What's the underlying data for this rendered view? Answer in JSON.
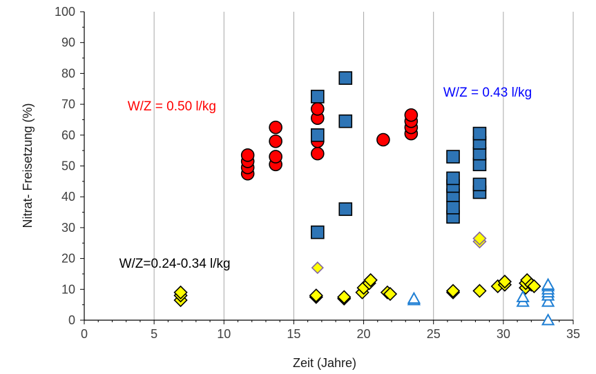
{
  "chart_data": {
    "type": "scatter",
    "xlabel": "Zeit (Jahre)",
    "ylabel": "Nitrat- Freisetzung (%)",
    "xlim": [
      0,
      35
    ],
    "ylim": [
      0,
      100
    ],
    "xticks": [
      0,
      5,
      10,
      15,
      20,
      25,
      30,
      35
    ],
    "yticks": [
      0,
      10,
      20,
      30,
      40,
      50,
      60,
      70,
      80,
      90,
      100
    ],
    "grid": "vertical",
    "legend": "none",
    "colors": {
      "circle_fill": "#ff0000",
      "square_fill": "#2e75b6",
      "diamond_fill": "#ffff00",
      "diamond_purple_edge": "#8064a2",
      "triangle_edge": "#1f7fd4",
      "grid": "#a6a6a6"
    },
    "annotations": [
      {
        "text": "W/Z = 0.50 l/kg",
        "color": "#ff0000"
      },
      {
        "text": "W/Z = 0.43 l/kg",
        "color": "#0000ff"
      },
      {
        "text": "W/Z=0.24-0.34 l/kg",
        "color": "#000000"
      }
    ],
    "series": [
      {
        "marker": "circle",
        "points": [
          [
            11.7,
            47.5
          ],
          [
            11.7,
            49.5
          ],
          [
            11.7,
            51.5
          ],
          [
            11.7,
            53.5
          ],
          [
            13.7,
            50.5
          ],
          [
            13.7,
            53
          ],
          [
            13.7,
            58
          ],
          [
            13.7,
            62.5
          ],
          [
            16.7,
            54
          ],
          [
            16.7,
            58
          ],
          [
            16.7,
            65.5
          ],
          [
            16.7,
            68.5
          ],
          [
            21.4,
            58.5
          ],
          [
            23.4,
            60.5
          ],
          [
            23.4,
            62.5
          ],
          [
            23.4,
            64.5
          ],
          [
            23.4,
            66.5
          ]
        ]
      },
      {
        "marker": "square",
        "points": [
          [
            16.7,
            28.5
          ],
          [
            16.7,
            60
          ],
          [
            16.7,
            72.5
          ],
          [
            18.7,
            36
          ],
          [
            18.7,
            64.5
          ],
          [
            18.7,
            78.5
          ],
          [
            26.4,
            33.5
          ],
          [
            26.4,
            36.5
          ],
          [
            26.4,
            40.5
          ],
          [
            26.4,
            43.5
          ],
          [
            26.4,
            46
          ],
          [
            26.4,
            53
          ],
          [
            28.3,
            41.5
          ],
          [
            28.3,
            44
          ],
          [
            28.3,
            50.5
          ],
          [
            28.3,
            54
          ],
          [
            28.3,
            57.5
          ],
          [
            28.3,
            60.5
          ]
        ]
      },
      {
        "marker": "diamond",
        "points": [
          [
            6.9,
            6.5
          ],
          [
            6.9,
            8
          ],
          [
            6.9,
            9
          ],
          [
            16.6,
            7.5
          ],
          [
            16.6,
            8
          ],
          [
            18.6,
            7
          ],
          [
            18.6,
            7.5
          ],
          [
            19.9,
            9
          ],
          [
            20.0,
            10.5
          ],
          [
            20.4,
            12
          ],
          [
            20.5,
            13
          ],
          [
            21.7,
            9
          ],
          [
            21.9,
            8.5
          ],
          [
            26.4,
            9
          ],
          [
            26.4,
            9.5
          ],
          [
            28.3,
            9.5
          ],
          [
            28.3,
            25.5
          ],
          [
            28.3,
            26.5
          ],
          [
            29.6,
            11
          ],
          [
            30.1,
            11.5
          ],
          [
            30.1,
            12.5
          ],
          [
            31.6,
            10.5
          ],
          [
            31.6,
            12
          ],
          [
            31.7,
            13
          ],
          [
            32.0,
            11.5
          ],
          [
            32.2,
            11
          ]
        ]
      },
      {
        "marker": "diamond-small",
        "points": [
          [
            16.7,
            17
          ]
        ]
      },
      {
        "marker": "triangle",
        "points": [
          [
            23.6,
            6.5
          ],
          [
            23.6,
            7
          ],
          [
            31.4,
            6
          ],
          [
            31.4,
            7.5
          ],
          [
            33.2,
            0
          ],
          [
            33.2,
            6
          ],
          [
            33.2,
            8
          ],
          [
            33.2,
            9
          ],
          [
            33.2,
            10
          ],
          [
            33.2,
            11
          ],
          [
            33.2,
            11.5
          ]
        ]
      }
    ]
  }
}
